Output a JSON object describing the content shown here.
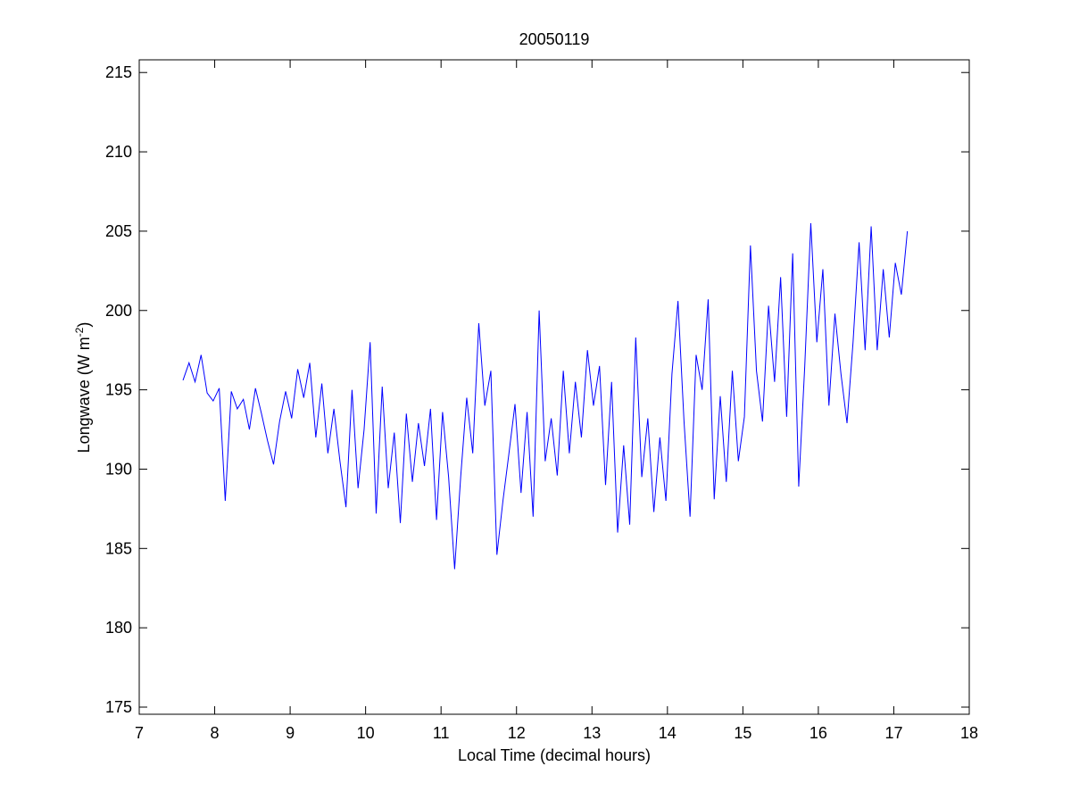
{
  "chart_data": {
    "type": "line",
    "title": "20050119",
    "xlabel": "Local Time (decimal hours)",
    "ylabel": [
      "Longwave (W m",
      "-2",
      ")"
    ],
    "x": [
      7.58,
      7.66,
      7.74,
      7.82,
      7.9,
      7.98,
      8.06,
      8.14,
      8.22,
      8.3,
      8.38,
      8.46,
      8.54,
      8.62,
      8.7,
      8.78,
      8.86,
      8.94,
      9.02,
      9.1,
      9.18,
      9.26,
      9.34,
      9.42,
      9.5,
      9.58,
      9.66,
      9.74,
      9.82,
      9.9,
      9.98,
      10.06,
      10.14,
      10.22,
      10.3,
      10.38,
      10.46,
      10.54,
      10.62,
      10.7,
      10.78,
      10.86,
      10.94,
      11.02,
      11.1,
      11.18,
      11.26,
      11.34,
      11.42,
      11.5,
      11.58,
      11.66,
      11.74,
      11.82,
      11.9,
      11.98,
      12.06,
      12.14,
      12.22,
      12.3,
      12.38,
      12.46,
      12.54,
      12.62,
      12.7,
      12.78,
      12.86,
      12.94,
      13.02,
      13.1,
      13.18,
      13.26,
      13.34,
      13.42,
      13.5,
      13.58,
      13.66,
      13.74,
      13.82,
      13.9,
      13.98,
      14.06,
      14.14,
      14.22,
      14.3,
      14.38,
      14.46,
      14.54,
      14.62,
      14.7,
      14.78,
      14.86,
      14.94,
      15.02,
      15.1,
      15.18,
      15.26,
      15.34,
      15.42,
      15.5,
      15.58,
      15.66,
      15.74,
      15.82,
      15.9,
      15.98,
      16.06,
      16.14,
      16.22,
      16.3,
      16.38,
      16.46,
      16.54,
      16.62,
      16.7,
      16.78,
      16.86,
      16.94,
      17.02,
      17.1,
      17.18
    ],
    "series": [
      {
        "color": "#0000ff",
        "values": [
          195.6,
          196.7,
          195.5,
          197.2,
          194.8,
          194.3,
          195.1,
          188.0,
          194.9,
          193.8,
          194.4,
          192.5,
          195.1,
          193.5,
          191.8,
          190.3,
          193.0,
          194.9,
          193.2,
          196.3,
          194.5,
          196.7,
          192.0,
          195.4,
          191.0,
          193.8,
          190.5,
          187.6,
          195.0,
          188.8,
          192.5,
          198.0,
          187.2,
          195.2,
          188.8,
          192.3,
          186.6,
          193.5,
          189.2,
          192.9,
          190.2,
          193.8,
          186.8,
          193.6,
          189.5,
          183.7,
          189.5,
          194.5,
          191.0,
          199.2,
          194.0,
          196.2,
          184.6,
          188.0,
          191.0,
          194.1,
          188.5,
          193.6,
          187.0,
          200.0,
          190.5,
          193.2,
          189.6,
          196.2,
          191.0,
          195.5,
          192.0,
          197.5,
          194.0,
          196.5,
          189.0,
          195.5,
          186.0,
          191.5,
          186.5,
          198.3,
          189.5,
          193.2,
          187.3,
          192.0,
          188.0,
          196.0,
          200.6,
          193.0,
          187.0,
          197.2,
          195.0,
          200.7,
          188.1,
          194.6,
          189.2,
          196.2,
          190.5,
          193.3,
          204.1,
          196.2,
          193.0,
          200.3,
          195.5,
          202.1,
          193.3,
          203.6,
          188.9,
          196.5,
          205.5,
          198.0,
          202.6,
          194.0,
          199.8,
          196.0,
          192.9,
          198.0,
          204.3,
          197.5,
          205.3,
          197.5,
          202.6,
          198.3,
          203.0,
          201.0,
          205.0
        ]
      }
    ],
    "xlim": [
      7,
      18
    ],
    "xticks": [
      7,
      8,
      9,
      10,
      11,
      12,
      13,
      14,
      15,
      16,
      17,
      18
    ],
    "ylim": [
      174.55,
      215.8
    ],
    "yticks": [
      175,
      180,
      185,
      190,
      195,
      200,
      205,
      210,
      215
    ]
  }
}
